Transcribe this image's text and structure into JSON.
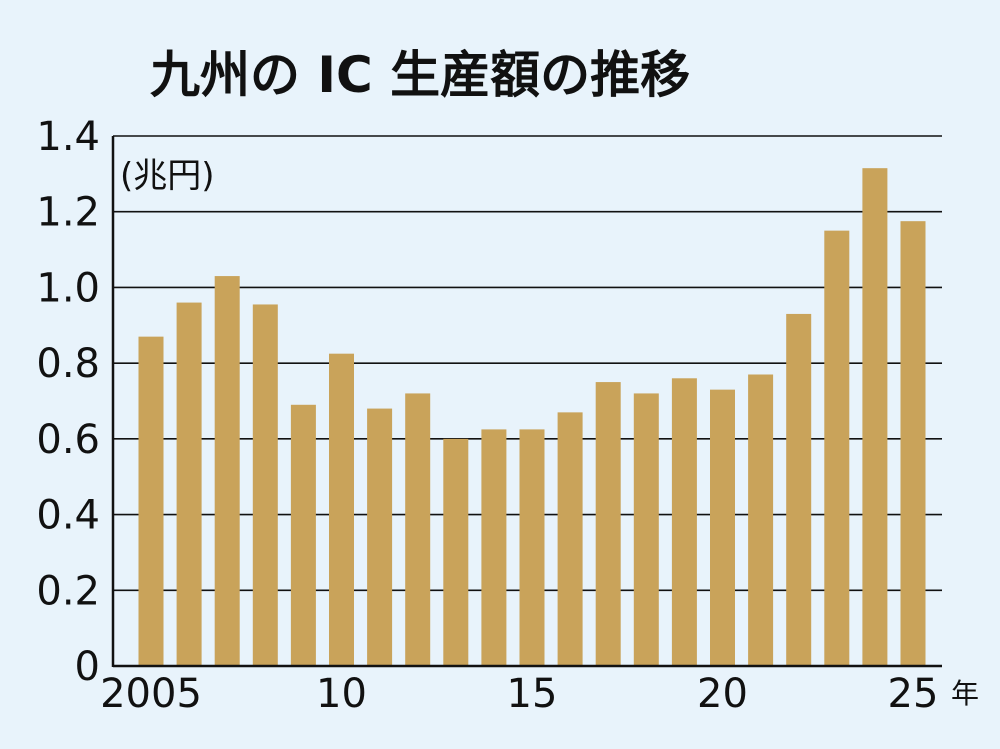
{
  "chart_data": {
    "type": "bar",
    "title": "九州の IC 生産額の推移",
    "unit_label": "(兆円)",
    "x_unit": "年",
    "categories": [
      "2005",
      "2006",
      "2007",
      "2008",
      "2009",
      "2010",
      "2011",
      "2012",
      "2013",
      "2014",
      "2015",
      "2016",
      "2017",
      "2018",
      "2019",
      "2020",
      "2021",
      "2022",
      "2023",
      "2024",
      "2025"
    ],
    "x_tick_labels": [
      {
        "year": "2005",
        "label": "2005"
      },
      {
        "year": "2010",
        "label": "10"
      },
      {
        "year": "2015",
        "label": "15"
      },
      {
        "year": "2020",
        "label": "20"
      },
      {
        "year": "2025",
        "label": "25"
      }
    ],
    "values": [
      0.87,
      0.96,
      1.03,
      0.955,
      0.69,
      0.825,
      0.68,
      0.72,
      0.6,
      0.625,
      0.625,
      0.67,
      0.75,
      0.72,
      0.76,
      0.73,
      0.77,
      0.93,
      1.15,
      1.315,
      1.175
    ],
    "ylim": [
      0,
      1.4
    ],
    "y_ticks": [
      "0",
      "0.2",
      "0.4",
      "0.6",
      "0.8",
      "1.0",
      "1.2",
      "1.4"
    ],
    "grid": true,
    "colors": {
      "bar": "#c9a35a",
      "background": "#e8f3fb",
      "grid": "#111111",
      "text": "#111111"
    }
  }
}
